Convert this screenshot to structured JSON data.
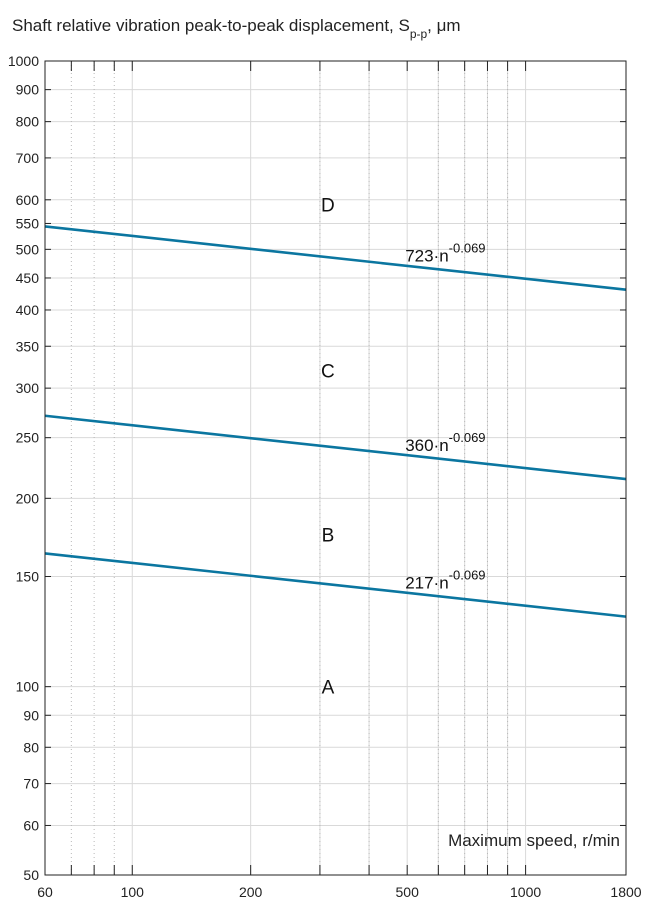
{
  "chart_data": {
    "type": "line",
    "title_main": "Shaft relative vibration peak-to-peak displacement, S",
    "title_sub": "p-p",
    "title_unit": ", μm",
    "xlabel": "Maximum speed, r/min",
    "x_scale": "log",
    "y_scale": "log",
    "xlim": [
      60,
      1800
    ],
    "ylim": [
      50,
      1000
    ],
    "x_ticks": [
      60,
      100,
      200,
      500,
      1000,
      1800
    ],
    "x_tick_labels": [
      "60",
      "100",
      "200",
      "500",
      "1000",
      "1800"
    ],
    "y_ticks": [
      50,
      60,
      70,
      80,
      90,
      100,
      150,
      200,
      250,
      300,
      350,
      400,
      450,
      500,
      550,
      600,
      700,
      800,
      900,
      1000
    ],
    "y_tick_labels": [
      "50",
      "60",
      "70",
      "80",
      "90",
      "100",
      "150",
      "200",
      "250",
      "300",
      "350",
      "400",
      "450",
      "500",
      "550",
      "600",
      "700",
      "800",
      "900",
      "1000"
    ],
    "x_major_grid": [
      100,
      200,
      300,
      400,
      500,
      600,
      700,
      800,
      900,
      1000
    ],
    "x_minor_grid": [
      70,
      80,
      90
    ],
    "series": [
      {
        "coefficient": 723,
        "exponent": -0.069,
        "x": [
          60,
          1800
        ],
        "values": [
          544,
          431
        ],
        "label_base": "723·n",
        "label_exp": "-0.069",
        "label_x": 500,
        "color": "#0b76a0"
      },
      {
        "coefficient": 360,
        "exponent": -0.069,
        "x": [
          60,
          1800
        ],
        "values": [
          271,
          214.7
        ],
        "label_base": "360·n",
        "label_exp": "-0.069",
        "label_x": 500,
        "color": "#0b76a0"
      },
      {
        "coefficient": 217,
        "exponent": -0.069,
        "x": [
          60,
          1800
        ],
        "values": [
          163.3,
          129.4
        ],
        "label_base": "217·n",
        "label_exp": "-0.069",
        "label_x": 500,
        "color": "#0b76a0"
      }
    ],
    "zones": [
      {
        "label": "D",
        "x": 300,
        "y": 590
      },
      {
        "label": "C",
        "x": 300,
        "y": 320
      },
      {
        "label": "B",
        "x": 300,
        "y": 175
      },
      {
        "label": "A",
        "x": 300,
        "y": 100
      }
    ],
    "grid": true
  }
}
